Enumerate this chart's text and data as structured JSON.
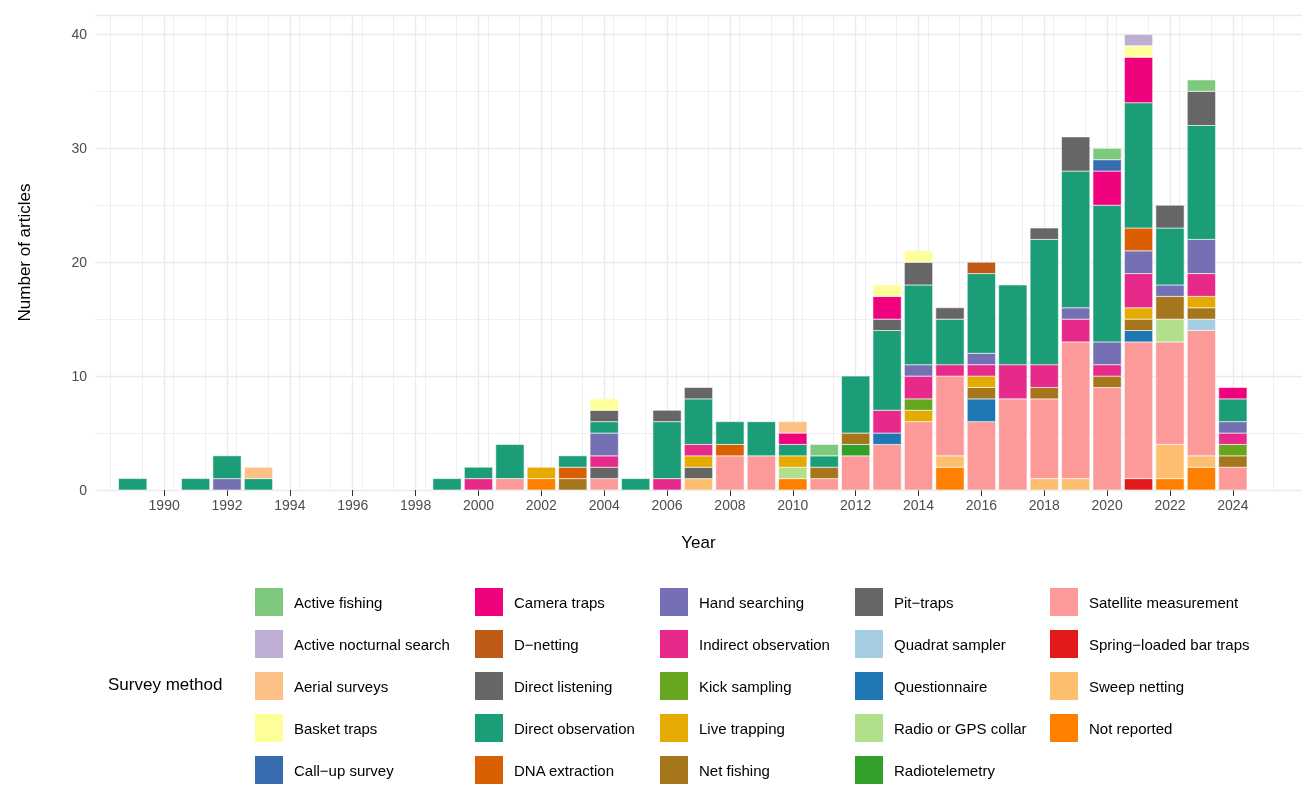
{
  "chart_data": {
    "type": "bar",
    "stacked": true,
    "xlabel": "Year",
    "ylabel": "Number of articles",
    "legend_title": "Survey method",
    "legend": "bottom",
    "grid": true,
    "x": [
      1989,
      1991,
      1992,
      1993,
      1999,
      2000,
      2001,
      2002,
      2003,
      2004,
      2005,
      2006,
      2007,
      2008,
      2009,
      2010,
      2011,
      2012,
      2013,
      2014,
      2015,
      2016,
      2017,
      2018,
      2019,
      2020,
      2021,
      2022,
      2023,
      2024
    ],
    "xlim": [
      1987.8,
      2026.2
    ],
    "xticks": [
      1990,
      1992,
      1994,
      1996,
      1998,
      2000,
      2002,
      2004,
      2006,
      2008,
      2010,
      2012,
      2014,
      2016,
      2018,
      2020,
      2022,
      2024
    ],
    "ylim": [
      0,
      41.7
    ],
    "yticks": [
      0,
      10,
      20,
      30,
      40
    ],
    "series": [
      {
        "name": "Not reported",
        "color": "#ff7f00",
        "values": [
          null,
          null,
          null,
          null,
          null,
          null,
          null,
          1,
          null,
          null,
          null,
          null,
          null,
          null,
          null,
          1,
          null,
          null,
          null,
          null,
          2,
          null,
          null,
          null,
          null,
          null,
          null,
          1,
          2,
          null
        ]
      },
      {
        "name": "Sweep netting",
        "color": "#fdbf6f",
        "values": [
          null,
          null,
          null,
          null,
          null,
          null,
          null,
          null,
          null,
          null,
          null,
          null,
          1,
          null,
          null,
          null,
          null,
          null,
          null,
          null,
          1,
          null,
          null,
          1,
          1,
          null,
          null,
          3,
          1,
          null
        ]
      },
      {
        "name": "Spring−loaded bar traps",
        "color": "#e31a1c",
        "values": [
          null,
          null,
          null,
          null,
          null,
          null,
          null,
          null,
          null,
          null,
          null,
          null,
          null,
          null,
          null,
          null,
          null,
          null,
          null,
          null,
          null,
          null,
          null,
          null,
          null,
          null,
          1,
          null,
          null,
          null
        ]
      },
      {
        "name": "Satellite measurement",
        "color": "#fb9a99",
        "values": [
          null,
          null,
          null,
          null,
          null,
          null,
          1,
          null,
          null,
          1,
          null,
          null,
          null,
          3,
          3,
          null,
          1,
          3,
          4,
          6,
          7,
          6,
          8,
          7,
          12,
          9,
          12,
          9,
          11,
          2
        ]
      },
      {
        "name": "Radiotelemetry",
        "color": "#33a02c",
        "values": [
          null,
          null,
          null,
          null,
          null,
          null,
          null,
          null,
          null,
          null,
          null,
          null,
          null,
          null,
          null,
          null,
          null,
          1,
          null,
          null,
          null,
          null,
          null,
          null,
          null,
          null,
          null,
          null,
          null,
          null
        ]
      },
      {
        "name": "Radio or GPS collar",
        "color": "#b2df8a",
        "values": [
          null,
          null,
          null,
          null,
          null,
          null,
          null,
          null,
          null,
          null,
          null,
          null,
          null,
          null,
          null,
          1,
          null,
          null,
          null,
          null,
          null,
          null,
          null,
          null,
          null,
          null,
          null,
          2,
          null,
          null
        ]
      },
      {
        "name": "Questionnaire",
        "color": "#1f78b4",
        "values": [
          null,
          null,
          null,
          null,
          null,
          null,
          null,
          null,
          null,
          null,
          null,
          null,
          null,
          null,
          null,
          null,
          null,
          null,
          1,
          null,
          null,
          2,
          null,
          null,
          null,
          null,
          1,
          null,
          null,
          null
        ]
      },
      {
        "name": "Quadrat sampler",
        "color": "#a6cee3",
        "values": [
          null,
          null,
          null,
          null,
          null,
          null,
          null,
          null,
          null,
          null,
          null,
          null,
          null,
          null,
          null,
          null,
          null,
          null,
          null,
          null,
          null,
          null,
          null,
          null,
          null,
          null,
          null,
          null,
          1,
          null
        ]
      },
      {
        "name": "Pit−traps",
        "color": "#666666",
        "values": [
          null,
          null,
          null,
          null,
          null,
          null,
          null,
          null,
          null,
          1,
          null,
          null,
          1,
          null,
          null,
          null,
          null,
          null,
          null,
          null,
          null,
          null,
          null,
          null,
          null,
          null,
          null,
          null,
          null,
          null
        ]
      },
      {
        "name": "Net fishing",
        "color": "#a6761d",
        "values": [
          null,
          null,
          null,
          null,
          null,
          null,
          null,
          null,
          1,
          null,
          null,
          null,
          null,
          null,
          null,
          null,
          1,
          1,
          null,
          null,
          null,
          1,
          null,
          1,
          null,
          1,
          1,
          2,
          1,
          1
        ]
      },
      {
        "name": "Live trapping",
        "color": "#e6ab02",
        "values": [
          null,
          null,
          null,
          null,
          null,
          null,
          null,
          1,
          null,
          null,
          null,
          null,
          1,
          null,
          null,
          1,
          null,
          null,
          null,
          1,
          null,
          1,
          null,
          null,
          null,
          null,
          1,
          null,
          1,
          null
        ]
      },
      {
        "name": "Kick sampling",
        "color": "#66a61e",
        "values": [
          null,
          null,
          null,
          null,
          null,
          null,
          null,
          null,
          null,
          null,
          null,
          null,
          null,
          null,
          null,
          null,
          null,
          null,
          null,
          1,
          null,
          null,
          null,
          null,
          null,
          null,
          null,
          null,
          null,
          1
        ]
      },
      {
        "name": "Indirect observation",
        "color": "#e7298a",
        "values": [
          null,
          null,
          null,
          null,
          null,
          1,
          null,
          null,
          null,
          1,
          null,
          1,
          1,
          null,
          null,
          null,
          null,
          null,
          2,
          2,
          1,
          1,
          3,
          2,
          2,
          1,
          3,
          null,
          2,
          1
        ]
      },
      {
        "name": "Hand searching",
        "color": "#7570b3",
        "values": [
          null,
          null,
          1,
          null,
          null,
          null,
          null,
          null,
          null,
          2,
          null,
          null,
          null,
          null,
          null,
          null,
          null,
          null,
          null,
          1,
          null,
          1,
          null,
          null,
          1,
          2,
          2,
          1,
          3,
          1
        ]
      },
      {
        "name": "DNA extraction",
        "color": "#d95f02",
        "values": [
          null,
          null,
          null,
          null,
          null,
          null,
          null,
          null,
          1,
          null,
          null,
          null,
          null,
          1,
          null,
          null,
          null,
          null,
          null,
          null,
          null,
          null,
          null,
          null,
          null,
          null,
          2,
          null,
          null,
          null
        ]
      },
      {
        "name": "Direct observation",
        "color": "#1b9e77",
        "values": [
          1,
          1,
          2,
          1,
          1,
          1,
          3,
          null,
          1,
          1,
          1,
          5,
          4,
          2,
          3,
          1,
          1,
          5,
          7,
          7,
          4,
          7,
          7,
          11,
          12,
          12,
          11,
          5,
          10,
          2
        ]
      },
      {
        "name": "Direct listening",
        "color": "#666666",
        "values": [
          null,
          null,
          null,
          null,
          null,
          null,
          null,
          null,
          null,
          1,
          null,
          1,
          1,
          null,
          null,
          null,
          null,
          null,
          1,
          2,
          1,
          null,
          null,
          1,
          3,
          null,
          null,
          2,
          3,
          null
        ]
      },
      {
        "name": "D−netting",
        "color": "#bf5b17",
        "values": [
          null,
          null,
          null,
          null,
          null,
          null,
          null,
          null,
          null,
          null,
          null,
          null,
          null,
          null,
          null,
          null,
          null,
          null,
          null,
          null,
          null,
          1,
          null,
          null,
          null,
          null,
          null,
          null,
          null,
          null
        ]
      },
      {
        "name": "Camera traps",
        "color": "#f0027f",
        "values": [
          null,
          null,
          null,
          null,
          null,
          null,
          null,
          null,
          null,
          null,
          null,
          null,
          null,
          null,
          null,
          1,
          null,
          null,
          2,
          null,
          null,
          null,
          null,
          null,
          null,
          3,
          4,
          null,
          null,
          1
        ]
      },
      {
        "name": "Call−up survey",
        "color": "#386cb0",
        "values": [
          null,
          null,
          null,
          null,
          null,
          null,
          null,
          null,
          null,
          null,
          null,
          null,
          null,
          null,
          null,
          null,
          null,
          null,
          null,
          null,
          null,
          null,
          null,
          null,
          null,
          1,
          null,
          null,
          null,
          null
        ]
      },
      {
        "name": "Basket traps",
        "color": "#ffff99",
        "values": [
          null,
          null,
          null,
          null,
          null,
          null,
          null,
          null,
          null,
          1,
          null,
          null,
          null,
          null,
          null,
          null,
          null,
          null,
          1,
          1,
          null,
          null,
          null,
          null,
          null,
          null,
          1,
          null,
          null,
          null
        ]
      },
      {
        "name": "Aerial surveys",
        "color": "#fdc086",
        "values": [
          null,
          null,
          null,
          1,
          null,
          null,
          null,
          null,
          null,
          null,
          null,
          null,
          null,
          null,
          null,
          1,
          null,
          null,
          null,
          null,
          null,
          null,
          null,
          null,
          null,
          null,
          null,
          null,
          null,
          null
        ]
      },
      {
        "name": "Active nocturnal search",
        "color": "#beaed4",
        "values": [
          null,
          null,
          null,
          null,
          null,
          null,
          null,
          null,
          null,
          null,
          null,
          null,
          null,
          null,
          null,
          null,
          null,
          null,
          null,
          null,
          null,
          null,
          null,
          null,
          null,
          null,
          1,
          null,
          null,
          null
        ]
      },
      {
        "name": "Active fishing",
        "color": "#7fc97f",
        "values": [
          null,
          null,
          null,
          null,
          null,
          null,
          null,
          null,
          null,
          null,
          null,
          null,
          null,
          null,
          null,
          null,
          1,
          null,
          null,
          null,
          null,
          null,
          null,
          null,
          null,
          1,
          null,
          null,
          1,
          null
        ]
      }
    ]
  }
}
